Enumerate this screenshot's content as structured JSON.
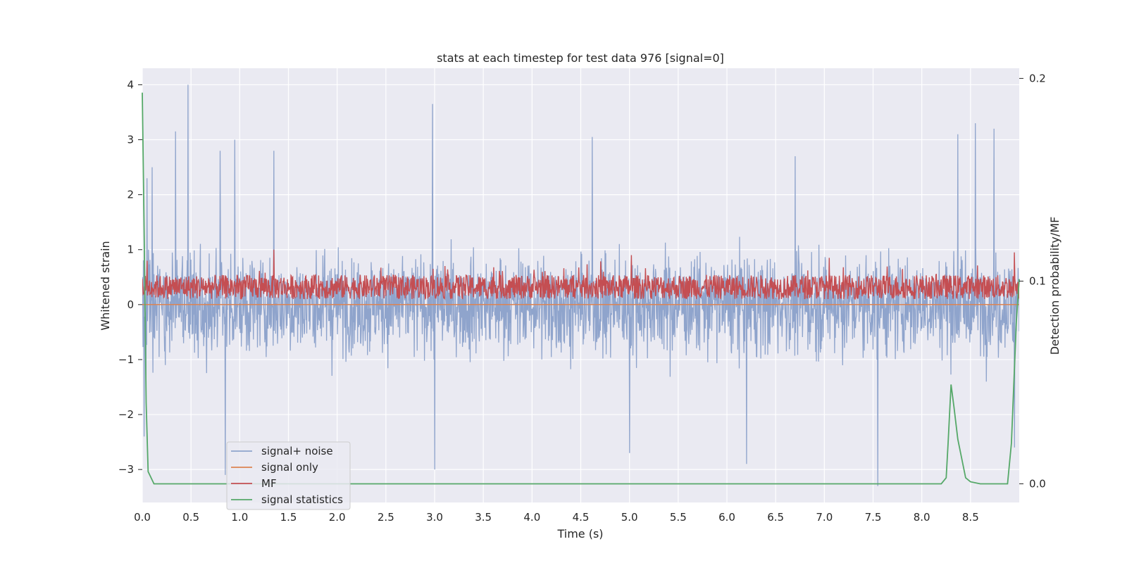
{
  "chart_data": {
    "type": "line",
    "title": "stats at each timestep for test data 976 [signal=0]",
    "xlabel": "Time (s)",
    "ylabel": "Whitened strain",
    "y2label": "Detection probability/MF",
    "xlim": [
      0.0,
      9.0
    ],
    "ylim": [
      -3.6,
      4.3
    ],
    "y2lim": [
      -0.0092,
      0.205
    ],
    "x_ticks": [
      0.0,
      0.5,
      1.0,
      1.5,
      2.0,
      2.5,
      3.0,
      3.5,
      4.0,
      4.5,
      5.0,
      5.5,
      6.0,
      6.5,
      7.0,
      7.5,
      8.0,
      8.5
    ],
    "x_tick_labels": [
      "0.0",
      "0.5",
      "1.0",
      "1.5",
      "2.0",
      "2.5",
      "3.0",
      "3.5",
      "4.0",
      "4.5",
      "5.0",
      "5.5",
      "6.0",
      "6.5",
      "7.0",
      "7.5",
      "8.0",
      "8.5"
    ],
    "y_ticks": [
      -3,
      -2,
      -1,
      0,
      1,
      2,
      3,
      4
    ],
    "y_tick_labels": [
      "−3",
      "−2",
      "−1",
      "0",
      "1",
      "2",
      "3",
      "4"
    ],
    "y2_ticks": [
      0.0,
      0.1,
      0.2
    ],
    "y2_tick_labels": [
      "0.0",
      "0.1",
      "0.2"
    ],
    "grid": true,
    "legend_position": "bottom-left",
    "background": "#eaeaf2",
    "series": [
      {
        "name": "signal+ noise",
        "color": "#8fa4cc",
        "axis": "left",
        "description": "dense noise trace",
        "peaks_x": [
          0.05,
          0.1,
          0.34,
          0.47,
          0.8,
          0.95,
          1.35,
          2.98,
          4.62,
          6.7,
          8.37,
          8.55,
          8.74
        ],
        "peaks_y": [
          2.3,
          2.5,
          3.15,
          4.0,
          2.8,
          3.0,
          2.8,
          3.65,
          3.05,
          2.7,
          3.1,
          3.3,
          3.2
        ],
        "troughs_x": [
          0.02,
          0.85,
          3.0,
          5.0,
          6.2,
          7.55,
          8.95
        ],
        "troughs_y": [
          -2.4,
          -3.1,
          -3.0,
          -2.7,
          -2.9,
          -3.3,
          -2.6
        ],
        "amplitude": 1.0
      },
      {
        "name": "signal only",
        "color": "#dd8452",
        "axis": "left",
        "x": [
          0.0,
          9.0
        ],
        "y": [
          0.0,
          0.0
        ]
      },
      {
        "name": "MF",
        "color": "#c44e52",
        "axis": "left",
        "description": "matched-filter band",
        "center": 0.32,
        "amplitude": 0.22,
        "peaks_x": [
          0.05,
          1.35,
          5.02,
          7.05,
          8.95
        ],
        "peaks_y": [
          0.8,
          1.0,
          0.9,
          0.85,
          0.95
        ]
      },
      {
        "name": "signal statistics",
        "color": "#55a868",
        "axis": "right",
        "x": [
          0.0,
          0.02,
          0.04,
          0.06,
          0.12,
          0.5,
          1.0,
          2.0,
          3.0,
          4.0,
          5.0,
          6.0,
          7.0,
          8.0,
          8.2,
          8.25,
          8.27,
          8.3,
          8.33,
          8.37,
          8.45,
          8.5,
          8.6,
          8.88,
          8.92,
          8.97,
          9.0
        ],
        "y": [
          0.193,
          0.12,
          0.04,
          0.006,
          0.0,
          0.0,
          0.0,
          0.0,
          0.0,
          0.0,
          0.0,
          0.0,
          0.0,
          0.0,
          0.0,
          0.003,
          0.02,
          0.049,
          0.038,
          0.022,
          0.003,
          0.001,
          0.0,
          0.0,
          0.02,
          0.08,
          0.101
        ]
      }
    ]
  }
}
